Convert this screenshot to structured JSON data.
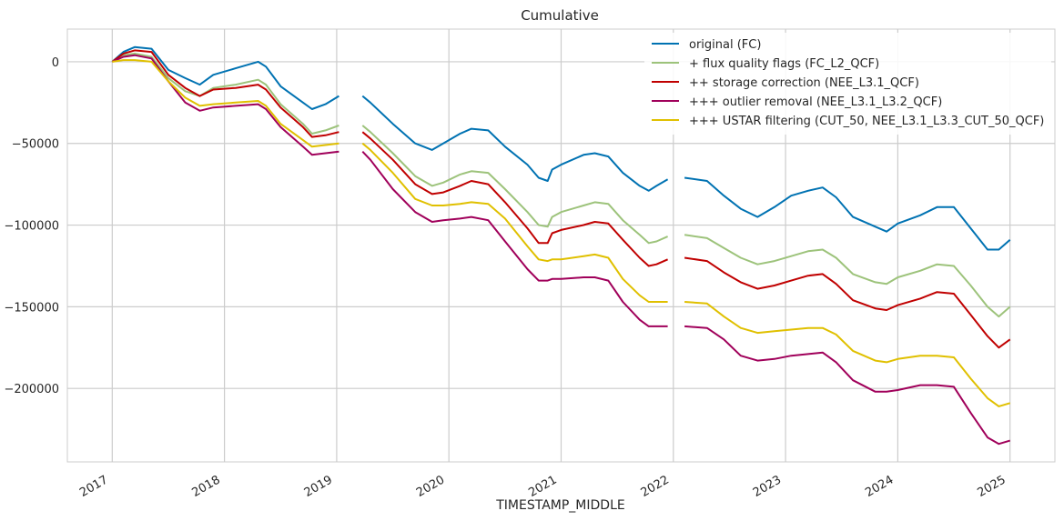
{
  "chart_data": {
    "type": "line",
    "title": "Cumulative",
    "xlabel": "TIMESTAMP_MIDDLE",
    "ylabel": "",
    "xlim": [
      2016.6,
      2025.4
    ],
    "ylim": [
      -245000,
      20000
    ],
    "grid": true,
    "legend_position": "top-right",
    "x_ticks": [
      2017,
      2018,
      2019,
      2020,
      2021,
      2022,
      2023,
      2024,
      2025
    ],
    "x_tick_labels": [
      "2017",
      "2018",
      "2019",
      "2020",
      "2021",
      "2022",
      "2023",
      "2024",
      "2025"
    ],
    "y_ticks": [
      0,
      -50000,
      -100000,
      -150000,
      -200000
    ],
    "y_tick_labels": [
      "0",
      "−50000",
      "−100000",
      "−150000",
      "−200000"
    ],
    "series": [
      {
        "name": "original (FC)",
        "color": "#0072b2",
        "x": [
          2017.0,
          2017.1,
          2017.2,
          2017.35,
          2017.5,
          2017.65,
          2017.78,
          2017.9,
          2018.1,
          2018.3,
          2018.37,
          2018.5,
          2018.7,
          2018.78,
          2018.9,
          2019.02,
          null,
          2019.23,
          2019.3,
          2019.5,
          2019.7,
          2019.85,
          2019.95,
          2020.1,
          2020.2,
          2020.35,
          2020.5,
          2020.7,
          2020.8,
          2020.88,
          2020.92,
          2021.0,
          2021.2,
          2021.3,
          2021.42,
          2021.55,
          2021.7,
          2021.78,
          2021.85,
          2021.95,
          null,
          2022.1,
          2022.3,
          2022.45,
          2022.6,
          2022.75,
          2022.9,
          2023.05,
          2023.2,
          2023.33,
          2023.45,
          2023.6,
          2023.8,
          2023.9,
          2024.0,
          2024.2,
          2024.35,
          2024.5,
          2024.65,
          2024.8,
          2024.9,
          2025.0
        ],
        "y": [
          0,
          6000,
          9000,
          8000,
          -5000,
          -10000,
          -14000,
          -8000,
          -4000,
          0,
          -3000,
          -15000,
          -25000,
          -29000,
          -26000,
          -21000,
          null,
          -21000,
          -25000,
          -38000,
          -50000,
          -54000,
          -50000,
          -44000,
          -41000,
          -42000,
          -52000,
          -63000,
          -71000,
          -73000,
          -66000,
          -63000,
          -57000,
          -56000,
          -58000,
          -68000,
          -76000,
          -79000,
          -76000,
          -72000,
          null,
          -71000,
          -73000,
          -82000,
          -90000,
          -95000,
          -89000,
          -82000,
          -79000,
          -77000,
          -83000,
          -95000,
          -101000,
          -104000,
          -99000,
          -94000,
          -89000,
          -89000,
          -102000,
          -115000,
          -115000,
          -109000
        ]
      },
      {
        "name": "+ flux quality flags (FC_L2_QCF)",
        "color": "#9dc37b",
        "x": [
          2017.0,
          2017.1,
          2017.2,
          2017.35,
          2017.5,
          2017.65,
          2017.78,
          2017.9,
          2018.1,
          2018.3,
          2018.37,
          2018.5,
          2018.7,
          2018.78,
          2018.9,
          2019.02,
          null,
          2019.23,
          2019.3,
          2019.5,
          2019.7,
          2019.85,
          2019.95,
          2020.1,
          2020.2,
          2020.35,
          2020.5,
          2020.7,
          2020.8,
          2020.88,
          2020.92,
          2021.0,
          2021.2,
          2021.3,
          2021.42,
          2021.55,
          2021.7,
          2021.78,
          2021.85,
          2021.95,
          null,
          2022.1,
          2022.3,
          2022.45,
          2022.6,
          2022.75,
          2022.9,
          2023.05,
          2023.2,
          2023.33,
          2023.45,
          2023.6,
          2023.8,
          2023.9,
          2024.0,
          2024.2,
          2024.35,
          2024.5,
          2024.65,
          2024.8,
          2024.9,
          2025.0
        ],
        "y": [
          0,
          4000,
          5000,
          3000,
          -10000,
          -18000,
          -21000,
          -16000,
          -14000,
          -11000,
          -14000,
          -26000,
          -38000,
          -44000,
          -42000,
          -39000,
          null,
          -39000,
          -43000,
          -56000,
          -70000,
          -76000,
          -74000,
          -69000,
          -67000,
          -68000,
          -78000,
          -92000,
          -100000,
          -101000,
          -95000,
          -92000,
          -88000,
          -86000,
          -87000,
          -97000,
          -106000,
          -111000,
          -110000,
          -107000,
          null,
          -106000,
          -108000,
          -114000,
          -120000,
          -124000,
          -122000,
          -119000,
          -116000,
          -115000,
          -120000,
          -130000,
          -135000,
          -136000,
          -132000,
          -128000,
          -124000,
          -125000,
          -137000,
          -150000,
          -156000,
          -150000
        ]
      },
      {
        "name": "++ storage correction (NEE_L3.1_QCF)",
        "color": "#c00000",
        "x": [
          2017.0,
          2017.1,
          2017.2,
          2017.35,
          2017.5,
          2017.65,
          2017.78,
          2017.9,
          2018.1,
          2018.3,
          2018.37,
          2018.5,
          2018.7,
          2018.78,
          2018.9,
          2019.02,
          null,
          2019.23,
          2019.3,
          2019.5,
          2019.7,
          2019.85,
          2019.95,
          2020.1,
          2020.2,
          2020.35,
          2020.5,
          2020.7,
          2020.8,
          2020.88,
          2020.92,
          2021.0,
          2021.2,
          2021.3,
          2021.42,
          2021.55,
          2021.7,
          2021.78,
          2021.85,
          2021.95,
          null,
          2022.1,
          2022.3,
          2022.45,
          2022.6,
          2022.75,
          2022.9,
          2023.05,
          2023.2,
          2023.33,
          2023.45,
          2023.6,
          2023.8,
          2023.9,
          2024.0,
          2024.2,
          2024.35,
          2024.5,
          2024.65,
          2024.8,
          2024.9,
          2025.0
        ],
        "y": [
          0,
          5000,
          7000,
          6000,
          -8000,
          -16000,
          -21000,
          -17000,
          -16000,
          -14000,
          -17000,
          -28000,
          -40000,
          -46000,
          -45000,
          -43000,
          null,
          -43000,
          -47000,
          -60000,
          -75000,
          -81000,
          -80000,
          -76000,
          -73000,
          -75000,
          -86000,
          -102000,
          -111000,
          -111000,
          -105000,
          -103000,
          -100000,
          -98000,
          -99000,
          -109000,
          -120000,
          -125000,
          -124000,
          -121000,
          null,
          -120000,
          -122000,
          -129000,
          -135000,
          -139000,
          -137000,
          -134000,
          -131000,
          -130000,
          -136000,
          -146000,
          -151000,
          -152000,
          -149000,
          -145000,
          -141000,
          -142000,
          -155000,
          -168000,
          -175000,
          -170000
        ]
      },
      {
        "name": "+++ outlier removal (NEE_L3.1_L3.2_QCF)",
        "color": "#a0005a",
        "x": [
          2017.0,
          2017.1,
          2017.2,
          2017.35,
          2017.5,
          2017.65,
          2017.78,
          2017.9,
          2018.1,
          2018.3,
          2018.37,
          2018.5,
          2018.7,
          2018.78,
          2018.9,
          2019.02,
          null,
          2019.23,
          2019.3,
          2019.5,
          2019.7,
          2019.85,
          2019.95,
          2020.1,
          2020.2,
          2020.35,
          2020.5,
          2020.7,
          2020.8,
          2020.88,
          2020.92,
          2021.0,
          2021.2,
          2021.3,
          2021.42,
          2021.55,
          2021.7,
          2021.78,
          2021.85,
          2021.95,
          null,
          2022.1,
          2022.3,
          2022.45,
          2022.6,
          2022.75,
          2022.9,
          2023.05,
          2023.2,
          2023.33,
          2023.45,
          2023.6,
          2023.8,
          2023.9,
          2024.0,
          2024.2,
          2024.35,
          2024.5,
          2024.65,
          2024.8,
          2024.9,
          2025.0
        ],
        "y": [
          0,
          3000,
          4000,
          2000,
          -12000,
          -25000,
          -30000,
          -28000,
          -27000,
          -26000,
          -29000,
          -40000,
          -52000,
          -57000,
          -56000,
          -55000,
          null,
          -55000,
          -60000,
          -78000,
          -92000,
          -98000,
          -97000,
          -96000,
          -95000,
          -97000,
          -110000,
          -127000,
          -134000,
          -134000,
          -133000,
          -133000,
          -132000,
          -132000,
          -134000,
          -147000,
          -158000,
          -162000,
          -162000,
          -162000,
          null,
          -162000,
          -163000,
          -170000,
          -180000,
          -183000,
          -182000,
          -180000,
          -179000,
          -178000,
          -184000,
          -195000,
          -202000,
          -202000,
          -201000,
          -198000,
          -198000,
          -199000,
          -215000,
          -230000,
          -234000,
          -232000
        ]
      },
      {
        "name": "+++ USTAR filtering (CUT_50, NEE_L3.1_L3.3_CUT_50_QCF)",
        "color": "#e0c000",
        "x": [
          2017.0,
          2017.1,
          2017.2,
          2017.35,
          2017.5,
          2017.65,
          2017.78,
          2017.9,
          2018.1,
          2018.3,
          2018.37,
          2018.5,
          2018.7,
          2018.78,
          2018.9,
          2019.02,
          null,
          2019.23,
          2019.3,
          2019.5,
          2019.7,
          2019.85,
          2019.95,
          2020.1,
          2020.2,
          2020.35,
          2020.5,
          2020.7,
          2020.8,
          2020.88,
          2020.92,
          2021.0,
          2021.2,
          2021.3,
          2021.42,
          2021.55,
          2021.7,
          2021.78,
          2021.85,
          2021.95,
          null,
          2022.1,
          2022.3,
          2022.45,
          2022.6,
          2022.75,
          2022.9,
          2023.05,
          2023.2,
          2023.33,
          2023.45,
          2023.6,
          2023.8,
          2023.9,
          2024.0,
          2024.2,
          2024.35,
          2024.5,
          2024.65,
          2024.8,
          2024.9,
          2025.0
        ],
        "y": [
          0,
          1000,
          1000,
          0,
          -12000,
          -22000,
          -27000,
          -26000,
          -25000,
          -24000,
          -27000,
          -38000,
          -48000,
          -52000,
          -51000,
          -50000,
          null,
          -50000,
          -54000,
          -68000,
          -84000,
          -88000,
          -88000,
          -87000,
          -86000,
          -87000,
          -96000,
          -113000,
          -121000,
          -122000,
          -121000,
          -121000,
          -119000,
          -118000,
          -120000,
          -133000,
          -143000,
          -147000,
          -147000,
          -147000,
          null,
          -147000,
          -148000,
          -156000,
          -163000,
          -166000,
          -165000,
          -164000,
          -163000,
          -163000,
          -167000,
          -177000,
          -183000,
          -184000,
          -182000,
          -180000,
          -180000,
          -181000,
          -194000,
          -206000,
          -211000,
          -209000
        ]
      }
    ]
  }
}
